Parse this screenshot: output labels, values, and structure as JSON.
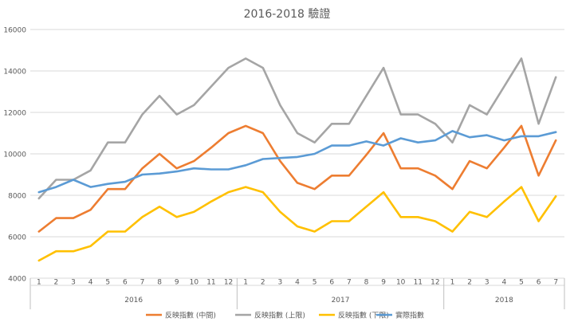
{
  "chart_data": {
    "type": "line",
    "title": "2016-2018 驗證",
    "ylim": [
      4000,
      16000
    ],
    "yticks": [
      4000,
      6000,
      8000,
      10000,
      12000,
      14000,
      16000
    ],
    "grid": "horizontal",
    "legend_position": "bottom",
    "groups": [
      {
        "label": "2016",
        "months": [
          "1",
          "2",
          "3",
          "4",
          "5",
          "6",
          "7",
          "8",
          "9",
          "10",
          "11",
          "12"
        ]
      },
      {
        "label": "2017",
        "months": [
          "1",
          "2",
          "3",
          "4",
          "5",
          "6",
          "7",
          "8",
          "9",
          "10",
          "11",
          "12"
        ]
      },
      {
        "label": "2018",
        "months": [
          "1",
          "2",
          "3",
          "4",
          "5",
          "6",
          "7"
        ]
      }
    ],
    "series": [
      {
        "name": "反映指數 (中間)",
        "color": "#ED7D31",
        "values": [
          6250,
          6900,
          6900,
          7300,
          8300,
          8300,
          9300,
          10000,
          9300,
          9650,
          10300,
          11000,
          11350,
          11000,
          9650,
          8600,
          8300,
          8950,
          8950,
          9950,
          11000,
          9300,
          9300,
          8950,
          8300,
          9650,
          9300,
          10300,
          11350,
          8950,
          10650
        ]
      },
      {
        "name": "反映指數 (上限)",
        "color": "#A5A5A5",
        "values": [
          7850,
          8750,
          8750,
          9200,
          10550,
          10550,
          11900,
          12800,
          11900,
          12350,
          13250,
          14150,
          14600,
          14150,
          12350,
          11000,
          10550,
          11450,
          11450,
          12800,
          14150,
          11900,
          11900,
          11450,
          10550,
          12350,
          11900,
          13250,
          14600,
          11450,
          13700
        ]
      },
      {
        "name": "反映指數 (下限)",
        "color": "#FFC000",
        "values": [
          4850,
          5300,
          5300,
          5550,
          6250,
          6250,
          6950,
          7450,
          6950,
          7200,
          7700,
          8150,
          8400,
          8150,
          7200,
          6500,
          6250,
          6750,
          6750,
          7450,
          8150,
          6950,
          6950,
          6750,
          6250,
          7200,
          6950,
          7700,
          8400,
          6750,
          7950
        ]
      },
      {
        "name": "實際指數",
        "color": "#5B9BD5",
        "values": [
          8150,
          8400,
          8750,
          8400,
          8550,
          8650,
          9000,
          9050,
          9150,
          9300,
          9250,
          9250,
          9450,
          9750,
          9800,
          9850,
          10000,
          10400,
          10400,
          10600,
          10400,
          10750,
          10550,
          10650,
          11100,
          10800,
          10900,
          10650,
          10850,
          10850,
          11050
        ]
      }
    ]
  }
}
